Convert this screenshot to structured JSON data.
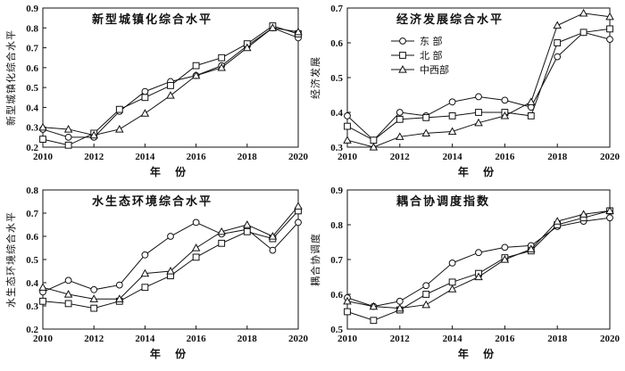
{
  "chart_data": [
    {
      "type": "line",
      "title": "新型城镇化综合水平",
      "xlabel": "年 份",
      "ylabel": "新型城镇化综合水平",
      "x": [
        2010,
        2011,
        2012,
        2013,
        2014,
        2015,
        2016,
        2017,
        2018,
        2019,
        2020
      ],
      "xlim": [
        2010,
        2020
      ],
      "xticks": [
        "2010",
        "2012",
        "2014",
        "2016",
        "2018",
        "2020"
      ],
      "ylim": [
        0.2,
        0.9
      ],
      "yticks": [
        "0.2",
        "0.3",
        "0.4",
        "0.5",
        "0.6",
        "0.7",
        "0.8",
        "0.9"
      ],
      "grid": false,
      "series": [
        {
          "name": "东 部",
          "marker": "circle",
          "values": [
            0.29,
            0.25,
            0.25,
            0.38,
            0.48,
            0.53,
            0.56,
            0.61,
            0.71,
            0.8,
            0.75
          ]
        },
        {
          "name": "北 部",
          "marker": "square",
          "values": [
            0.24,
            0.21,
            0.27,
            0.39,
            0.45,
            0.51,
            0.61,
            0.65,
            0.72,
            0.81,
            0.77
          ]
        },
        {
          "name": "中西部",
          "marker": "triangle",
          "values": [
            0.3,
            0.29,
            0.26,
            0.29,
            0.37,
            0.46,
            0.56,
            0.6,
            0.7,
            0.8,
            0.78
          ]
        }
      ]
    },
    {
      "type": "line",
      "title": "经济发展综合水平",
      "xlabel": "年 份",
      "ylabel": "经济发展",
      "x": [
        2010,
        2011,
        2012,
        2013,
        2014,
        2015,
        2016,
        2017,
        2018,
        2019,
        2020
      ],
      "xlim": [
        2010,
        2020
      ],
      "xticks": [
        "2010",
        "2012",
        "2014",
        "2016",
        "2018",
        "2020"
      ],
      "ylim": [
        0.3,
        0.7
      ],
      "yticks": [
        "0.3",
        "0.4",
        "0.5",
        "0.6",
        "0.7"
      ],
      "grid": false,
      "legend": {
        "position": "upper-left",
        "entries": [
          "东 部",
          "北 部",
          "中西部"
        ]
      },
      "series": [
        {
          "name": "东 部",
          "marker": "circle",
          "values": [
            0.39,
            0.32,
            0.4,
            0.39,
            0.43,
            0.445,
            0.435,
            0.415,
            0.56,
            0.63,
            0.61
          ]
        },
        {
          "name": "北 部",
          "marker": "square",
          "values": [
            0.36,
            0.32,
            0.38,
            0.385,
            0.39,
            0.4,
            0.4,
            0.39,
            0.6,
            0.63,
            0.64
          ]
        },
        {
          "name": "中西部",
          "marker": "triangle",
          "values": [
            0.32,
            0.3,
            0.33,
            0.34,
            0.345,
            0.37,
            0.39,
            0.43,
            0.65,
            0.685,
            0.675
          ]
        }
      ]
    },
    {
      "type": "line",
      "title": "水生态环境综合水平",
      "xlabel": "年 份",
      "ylabel": "水生态环境综合水平",
      "x": [
        2010,
        2011,
        2012,
        2013,
        2014,
        2015,
        2016,
        2017,
        2018,
        2019,
        2020
      ],
      "xlim": [
        2010,
        2020
      ],
      "xticks": [
        "2010",
        "2012",
        "2014",
        "2016",
        "2018",
        "2020"
      ],
      "ylim": [
        0.2,
        0.8
      ],
      "yticks": [
        "0.2",
        "0.3",
        "0.4",
        "0.5",
        "0.6",
        "0.7",
        "0.8"
      ],
      "grid": false,
      "series": [
        {
          "name": "东 部",
          "marker": "circle",
          "values": [
            0.36,
            0.41,
            0.37,
            0.39,
            0.52,
            0.6,
            0.66,
            0.61,
            0.63,
            0.54,
            0.66
          ]
        },
        {
          "name": "北 部",
          "marker": "square",
          "values": [
            0.32,
            0.31,
            0.29,
            0.32,
            0.38,
            0.43,
            0.51,
            0.57,
            0.62,
            0.59,
            0.71
          ]
        },
        {
          "name": "中西部",
          "marker": "triangle",
          "values": [
            0.38,
            0.35,
            0.33,
            0.33,
            0.44,
            0.45,
            0.55,
            0.62,
            0.65,
            0.6,
            0.73
          ]
        }
      ]
    },
    {
      "type": "line",
      "title": "耦合协调度指数",
      "xlabel": "年 份",
      "ylabel": "耦合协调度",
      "x": [
        2010,
        2011,
        2012,
        2013,
        2014,
        2015,
        2016,
        2017,
        2018,
        2019,
        2020
      ],
      "xlim": [
        2010,
        2020
      ],
      "xticks": [
        "2010",
        "2012",
        "2014",
        "2016",
        "2018",
        "2020"
      ],
      "ylim": [
        0.5,
        0.9
      ],
      "yticks": [
        "0.5",
        "0.6",
        "0.7",
        "0.8",
        "0.9"
      ],
      "grid": false,
      "series": [
        {
          "name": "东 部",
          "marker": "circle",
          "values": [
            0.59,
            0.565,
            0.58,
            0.625,
            0.69,
            0.72,
            0.735,
            0.74,
            0.795,
            0.81,
            0.82
          ]
        },
        {
          "name": "北 部",
          "marker": "square",
          "values": [
            0.55,
            0.525,
            0.555,
            0.6,
            0.635,
            0.66,
            0.705,
            0.725,
            0.8,
            0.82,
            0.84
          ]
        },
        {
          "name": "中西部",
          "marker": "triangle",
          "values": [
            0.58,
            0.565,
            0.56,
            0.57,
            0.615,
            0.65,
            0.7,
            0.73,
            0.81,
            0.83,
            0.84
          ]
        }
      ]
    }
  ]
}
